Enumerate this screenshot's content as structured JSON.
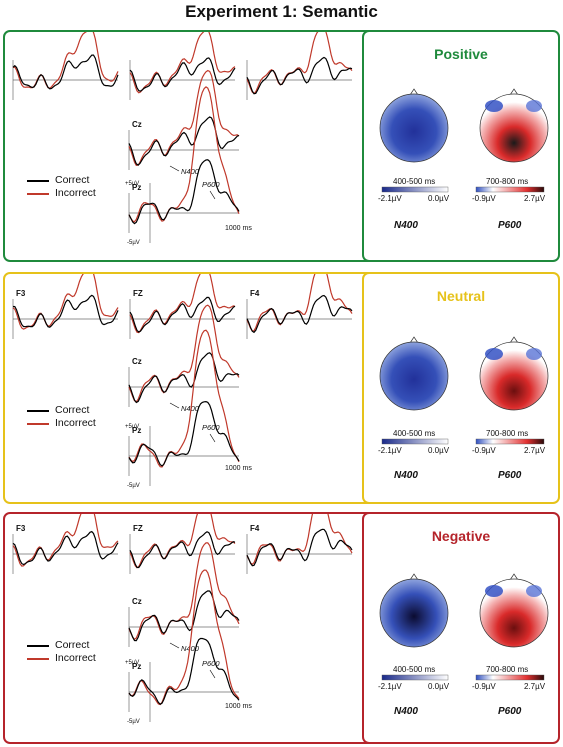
{
  "title": "Experiment 1: Semantic",
  "legend": {
    "correct": "Correct",
    "incorrect": "Incorrect"
  },
  "colors": {
    "correct": "#000000",
    "incorrect": "#c0392b"
  },
  "panels": [
    {
      "condition": "Positive",
      "color": "#1f8a3c",
      "electrodes": [
        "",
        "",
        ""
      ],
      "cz": "Cz",
      "pz": "Pz",
      "n400_label": "N400",
      "p600_label": "P600",
      "y_top": "+5µV",
      "y_bottom": "-5µV",
      "time_label": "1000 ms",
      "map1": {
        "window": "400-500 ms",
        "min": "-2.1µV",
        "max": "0.0µV",
        "component": "N400"
      },
      "map2": {
        "window": "700-800 ms",
        "min": "-0.9µV",
        "max": "2.7µV",
        "component": "P600"
      }
    },
    {
      "condition": "Neutral",
      "color": "#e6c21a",
      "electrodes": [
        "F3",
        "FZ",
        "F4"
      ],
      "cz": "Cz",
      "pz": "Pz",
      "n400_label": "N400",
      "p600_label": "P600",
      "y_top": "+5µV",
      "y_bottom": "-5µV",
      "time_label": "1000 ms",
      "map1": {
        "window": "400-500 ms",
        "min": "-2.1µV",
        "max": "0.0µV",
        "component": "N400"
      },
      "map2": {
        "window": "700-800 ms",
        "min": "-0.9µV",
        "max": "2.7µV",
        "component": "P600"
      }
    },
    {
      "condition": "Negative",
      "color": "#b5242b",
      "electrodes": [
        "F3",
        "FZ",
        "F4"
      ],
      "cz": "Cz",
      "pz": "Pz",
      "n400_label": "N400",
      "p600_label": "P600",
      "y_top": "+5µV",
      "y_bottom": "-5µV",
      "time_label": "1000 ms",
      "map1": {
        "window": "400-500 ms",
        "min": "-2.1µV",
        "max": "0.0µV",
        "component": "N400"
      },
      "map2": {
        "window": "700-800 ms",
        "min": "-0.9µV",
        "max": "2.7µV",
        "component": "P600"
      }
    }
  ]
}
